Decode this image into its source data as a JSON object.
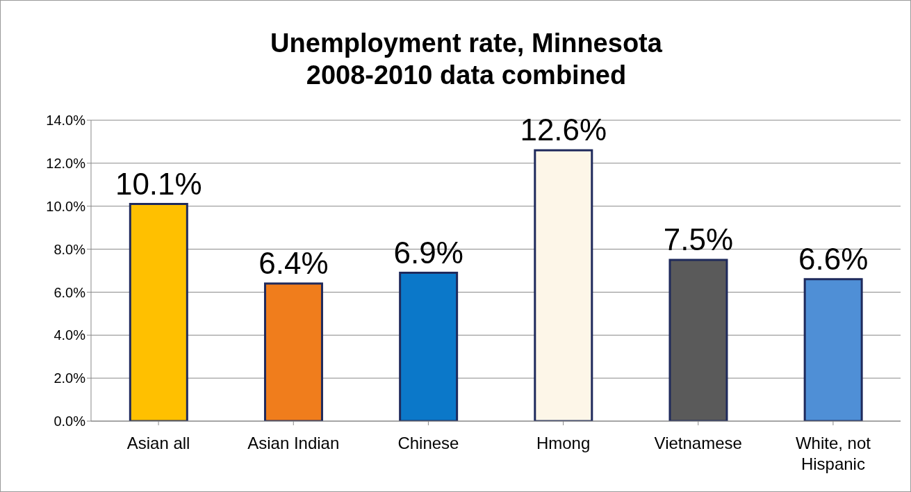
{
  "chart_data": {
    "type": "bar",
    "title": "Unemployment rate, Minnesota\n2008-2010 data combined",
    "categories": [
      "Asian all",
      "Asian Indian",
      "Chinese",
      "Hmong",
      "Vietnamese",
      "White, not Hispanic"
    ],
    "values": [
      10.1,
      6.4,
      6.9,
      12.6,
      7.5,
      6.6
    ],
    "colors": [
      "#ffc000",
      "#f07d1c",
      "#0b78c9",
      "#fdf6e8",
      "#5a5a5a",
      "#4f8fd6"
    ],
    "value_labels": [
      "10.1%",
      "6.4%",
      "6.9%",
      "12.6%",
      "7.5%",
      "6.6%"
    ],
    "ylim": [
      0,
      14
    ],
    "yticks": [
      {
        "value": 0,
        "label": "0.0%"
      },
      {
        "value": 2,
        "label": "2.0%"
      },
      {
        "value": 4,
        "label": "4.0%"
      },
      {
        "value": 6,
        "label": "6.0%"
      },
      {
        "value": 8,
        "label": "8.0%"
      },
      {
        "value": 10,
        "label": "10.0%"
      },
      {
        "value": 12,
        "label": "12.0%"
      },
      {
        "value": 14,
        "label": "14.0%"
      }
    ],
    "grid": "y"
  }
}
